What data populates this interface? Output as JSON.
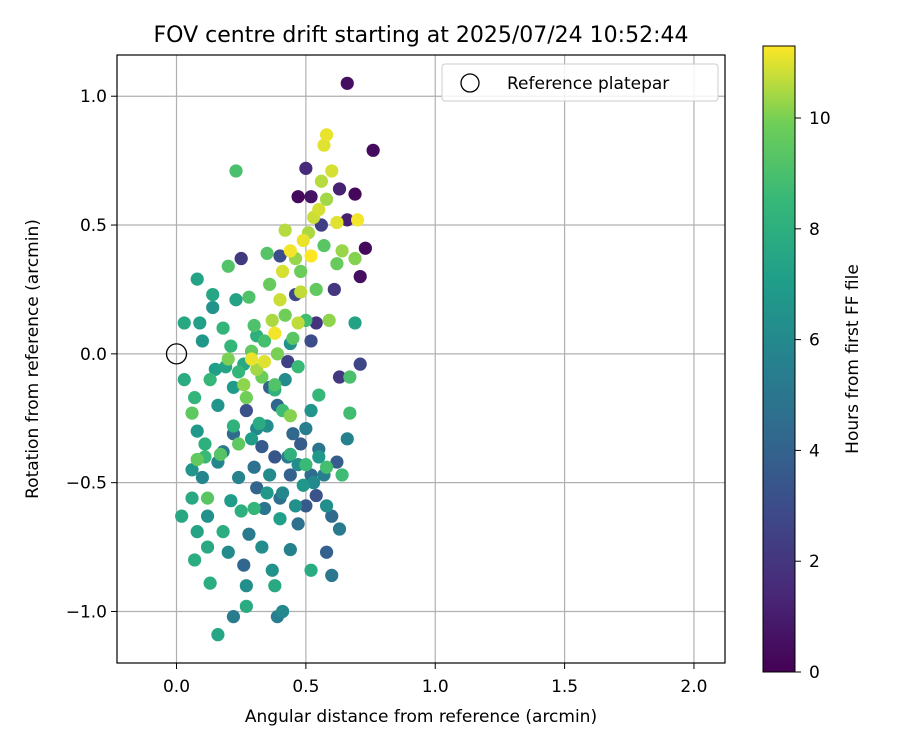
{
  "chart_data": {
    "type": "scatter",
    "title": "FOV centre drift starting at 2025/07/24 10:52:44",
    "xlabel": "Angular distance from reference (arcmin)",
    "ylabel": "Rotation from reference (arcmin)",
    "xlim": [
      -0.23,
      2.12
    ],
    "ylim": [
      -1.2,
      1.16
    ],
    "xticks": [
      0.0,
      0.5,
      1.0,
      1.5,
      2.0
    ],
    "xtick_labels": [
      "0.0",
      "0.5",
      "1.0",
      "1.5",
      "2.0"
    ],
    "yticks": [
      -1.0,
      -0.5,
      0.0,
      0.5,
      1.0
    ],
    "ytick_labels": [
      "−1.0",
      "−0.5",
      "0.0",
      "0.5",
      "1.0"
    ],
    "grid": true,
    "legend_placement": "top-right",
    "legend": [
      "Reference platepar"
    ],
    "reference_point": {
      "name": "Reference platepar",
      "x": 0.0,
      "y": 0.0
    },
    "colorbar": {
      "label": "Hours from first FF file",
      "colormap": "viridis",
      "min": 0,
      "max": 11.3,
      "ticks": [
        0,
        2,
        4,
        6,
        8,
        10
      ],
      "tick_labels": [
        "0",
        "2",
        "4",
        "6",
        "8",
        "10"
      ]
    },
    "points": [
      {
        "x": 0.66,
        "y": 1.05,
        "c": 0.5
      },
      {
        "x": 0.76,
        "y": 0.79,
        "c": 0.4
      },
      {
        "x": 0.5,
        "y": 0.72,
        "c": 1.5
      },
      {
        "x": 0.47,
        "y": 0.61,
        "c": 0.3
      },
      {
        "x": 0.52,
        "y": 0.61,
        "c": 0.6
      },
      {
        "x": 0.69,
        "y": 0.62,
        "c": 0.2
      },
      {
        "x": 0.63,
        "y": 0.64,
        "c": 1.2
      },
      {
        "x": 0.66,
        "y": 0.52,
        "c": 1.1
      },
      {
        "x": 0.73,
        "y": 0.41,
        "c": 0.3
      },
      {
        "x": 0.71,
        "y": 0.3,
        "c": 0.5
      },
      {
        "x": 0.25,
        "y": 0.37,
        "c": 2.2
      },
      {
        "x": 0.56,
        "y": 0.5,
        "c": 2.4
      },
      {
        "x": 0.61,
        "y": 0.25,
        "c": 2.0
      },
      {
        "x": 0.46,
        "y": 0.23,
        "c": 2.8
      },
      {
        "x": 0.54,
        "y": 0.12,
        "c": 1.9
      },
      {
        "x": 0.63,
        "y": -0.09,
        "c": 2.1
      },
      {
        "x": 0.71,
        "y": -0.04,
        "c": 2.7
      },
      {
        "x": 0.43,
        "y": -0.03,
        "c": 2.5
      },
      {
        "x": 0.52,
        "y": 0.05,
        "c": 3.0
      },
      {
        "x": 0.4,
        "y": 0.38,
        "c": 3.0
      },
      {
        "x": 0.33,
        "y": -0.36,
        "c": 3.6
      },
      {
        "x": 0.27,
        "y": -0.22,
        "c": 3.2
      },
      {
        "x": 0.38,
        "y": -0.4,
        "c": 3.4
      },
      {
        "x": 0.44,
        "y": -0.47,
        "c": 3.9
      },
      {
        "x": 0.54,
        "y": -0.55,
        "c": 3.3
      },
      {
        "x": 0.62,
        "y": -0.42,
        "c": 3.8
      },
      {
        "x": 0.26,
        "y": -0.82,
        "c": 4.2
      },
      {
        "x": 0.58,
        "y": -0.77,
        "c": 3.9
      },
      {
        "x": 0.5,
        "y": -0.59,
        "c": 3.6
      },
      {
        "x": 0.31,
        "y": -0.52,
        "c": 4.1
      },
      {
        "x": 0.22,
        "y": -0.31,
        "c": 4.4
      },
      {
        "x": 0.48,
        "y": -0.35,
        "c": 3.7
      },
      {
        "x": 0.36,
        "y": -0.13,
        "c": 4.0
      },
      {
        "x": 0.45,
        "y": -0.31,
        "c": 4.3
      },
      {
        "x": 0.52,
        "y": -0.47,
        "c": 4.5
      },
      {
        "x": 0.4,
        "y": -0.56,
        "c": 4.6
      },
      {
        "x": 0.3,
        "y": -0.44,
        "c": 4.8
      },
      {
        "x": 0.55,
        "y": -0.37,
        "c": 4.9
      },
      {
        "x": 0.6,
        "y": -0.63,
        "c": 4.4
      },
      {
        "x": 0.47,
        "y": -0.66,
        "c": 4.7
      },
      {
        "x": 0.39,
        "y": -0.2,
        "c": 4.2
      },
      {
        "x": 0.34,
        "y": -0.6,
        "c": 5.0
      },
      {
        "x": 0.28,
        "y": -0.7,
        "c": 5.2
      },
      {
        "x": 0.18,
        "y": -0.38,
        "c": 5.1
      },
      {
        "x": 0.43,
        "y": -0.4,
        "c": 5.3
      },
      {
        "x": 0.5,
        "y": -0.29,
        "c": 5.4
      },
      {
        "x": 0.57,
        "y": -0.47,
        "c": 5.5
      },
      {
        "x": 0.66,
        "y": -0.33,
        "c": 5.6
      },
      {
        "x": 0.6,
        "y": -0.86,
        "c": 5.1
      },
      {
        "x": 0.22,
        "y": -1.02,
        "c": 5.3
      },
      {
        "x": 0.39,
        "y": -1.02,
        "c": 5.4
      },
      {
        "x": 0.44,
        "y": -0.76,
        "c": 5.6
      },
      {
        "x": 0.63,
        "y": -0.68,
        "c": 5.2
      },
      {
        "x": 0.1,
        "y": -0.48,
        "c": 5.8
      },
      {
        "x": 0.16,
        "y": -0.42,
        "c": 5.9
      },
      {
        "x": 0.24,
        "y": -0.48,
        "c": 5.7
      },
      {
        "x": 0.31,
        "y": -0.29,
        "c": 6.0
      },
      {
        "x": 0.36,
        "y": -0.47,
        "c": 6.1
      },
      {
        "x": 0.41,
        "y": -0.54,
        "c": 5.9
      },
      {
        "x": 0.47,
        "y": -0.43,
        "c": 6.2
      },
      {
        "x": 0.53,
        "y": -0.5,
        "c": 6.0
      },
      {
        "x": 0.58,
        "y": -0.59,
        "c": 6.3
      },
      {
        "x": 0.2,
        "y": -0.77,
        "c": 6.1
      },
      {
        "x": 0.33,
        "y": -0.75,
        "c": 6.2
      },
      {
        "x": 0.12,
        "y": -0.63,
        "c": 6.4
      },
      {
        "x": 0.41,
        "y": -1.0,
        "c": 6.0
      },
      {
        "x": 0.27,
        "y": -0.9,
        "c": 6.3
      },
      {
        "x": 0.37,
        "y": -0.84,
        "c": 6.5
      },
      {
        "x": 0.46,
        "y": -0.59,
        "c": 6.4
      },
      {
        "x": 0.35,
        "y": -0.28,
        "c": 6.2
      },
      {
        "x": 0.42,
        "y": -0.1,
        "c": 6.1
      },
      {
        "x": 0.16,
        "y": -0.2,
        "c": 6.6
      },
      {
        "x": 0.1,
        "y": 0.05,
        "c": 6.7
      },
      {
        "x": 0.14,
        "y": 0.18,
        "c": 6.5
      },
      {
        "x": 0.08,
        "y": -0.3,
        "c": 6.8
      },
      {
        "x": 0.06,
        "y": -0.45,
        "c": 6.6
      },
      {
        "x": 0.22,
        "y": -0.13,
        "c": 6.9
      },
      {
        "x": 0.52,
        "y": -0.22,
        "c": 6.6
      },
      {
        "x": 0.49,
        "y": -0.51,
        "c": 6.7
      },
      {
        "x": 0.55,
        "y": -0.4,
        "c": 6.8
      },
      {
        "x": 0.44,
        "y": 0.04,
        "c": 6.5
      },
      {
        "x": 0.35,
        "y": -0.54,
        "c": 6.8
      },
      {
        "x": 0.21,
        "y": -0.57,
        "c": 7.0
      },
      {
        "x": 0.29,
        "y": -0.33,
        "c": 7.0
      },
      {
        "x": 0.15,
        "y": -0.06,
        "c": 7.1
      },
      {
        "x": 0.4,
        "y": -0.64,
        "c": 7.1
      },
      {
        "x": 0.69,
        "y": 0.12,
        "c": 7.3
      },
      {
        "x": 0.08,
        "y": 0.29,
        "c": 7.4
      },
      {
        "x": 0.09,
        "y": 0.12,
        "c": 7.2
      },
      {
        "x": 0.03,
        "y": 0.12,
        "c": 7.6
      },
      {
        "x": 0.14,
        "y": 0.23,
        "c": 7.5
      },
      {
        "x": 0.23,
        "y": 0.21,
        "c": 7.3
      },
      {
        "x": 0.19,
        "y": -0.05,
        "c": 7.4
      },
      {
        "x": 0.12,
        "y": -0.75,
        "c": 7.7
      },
      {
        "x": 0.03,
        "y": -0.1,
        "c": 7.8
      },
      {
        "x": 0.02,
        "y": -0.63,
        "c": 7.6
      },
      {
        "x": 0.08,
        "y": -0.69,
        "c": 7.4
      },
      {
        "x": 0.06,
        "y": -0.56,
        "c": 7.7
      },
      {
        "x": 0.13,
        "y": -0.89,
        "c": 7.9
      },
      {
        "x": 0.16,
        "y": -1.09,
        "c": 7.5
      },
      {
        "x": 0.27,
        "y": -0.98,
        "c": 7.8
      },
      {
        "x": 0.18,
        "y": -0.69,
        "c": 7.9
      },
      {
        "x": 0.25,
        "y": -0.61,
        "c": 8.0
      },
      {
        "x": 0.38,
        "y": -0.9,
        "c": 7.7
      },
      {
        "x": 0.32,
        "y": -0.27,
        "c": 7.8
      },
      {
        "x": 0.26,
        "y": -0.04,
        "c": 7.6
      },
      {
        "x": 0.11,
        "y": -0.35,
        "c": 8.0
      },
      {
        "x": 0.07,
        "y": -0.8,
        "c": 7.9
      },
      {
        "x": 0.52,
        "y": -0.84,
        "c": 7.8
      },
      {
        "x": 0.44,
        "y": -0.39,
        "c": 8.1
      },
      {
        "x": 0.38,
        "y": -0.14,
        "c": 8.2
      },
      {
        "x": 0.31,
        "y": 0.07,
        "c": 8.0
      },
      {
        "x": 0.18,
        "y": 0.1,
        "c": 8.3
      },
      {
        "x": 0.3,
        "y": -0.6,
        "c": 8.4
      },
      {
        "x": 0.22,
        "y": -0.28,
        "c": 8.2
      },
      {
        "x": 0.13,
        "y": -0.1,
        "c": 8.5
      },
      {
        "x": 0.07,
        "y": -0.17,
        "c": 8.3
      },
      {
        "x": 0.11,
        "y": -0.4,
        "c": 8.6
      },
      {
        "x": 0.24,
        "y": -0.07,
        "c": 8.4
      },
      {
        "x": 0.41,
        "y": -0.22,
        "c": 8.7
      },
      {
        "x": 0.55,
        "y": -0.16,
        "c": 8.5
      },
      {
        "x": 0.5,
        "y": -0.43,
        "c": 8.6
      },
      {
        "x": 0.67,
        "y": -0.23,
        "c": 8.8
      },
      {
        "x": 0.58,
        "y": -0.44,
        "c": 8.9
      },
      {
        "x": 0.64,
        "y": -0.47,
        "c": 8.7
      },
      {
        "x": 0.47,
        "y": -0.05,
        "c": 8.6
      },
      {
        "x": 0.5,
        "y": 0.13,
        "c": 8.8
      },
      {
        "x": 0.67,
        "y": -0.09,
        "c": 9.0
      },
      {
        "x": 0.34,
        "y": 0.05,
        "c": 8.9
      },
      {
        "x": 0.21,
        "y": 0.03,
        "c": 8.4
      },
      {
        "x": 0.28,
        "y": 0.22,
        "c": 9.1
      },
      {
        "x": 0.2,
        "y": 0.34,
        "c": 9.2
      },
      {
        "x": 0.23,
        "y": 0.71,
        "c": 9.0
      },
      {
        "x": 0.35,
        "y": 0.39,
        "c": 9.3
      },
      {
        "x": 0.3,
        "y": 0.11,
        "c": 9.1
      },
      {
        "x": 0.45,
        "y": 0.06,
        "c": 9.4
      },
      {
        "x": 0.38,
        "y": -0.12,
        "c": 9.2
      },
      {
        "x": 0.24,
        "y": -0.35,
        "c": 9.5
      },
      {
        "x": 0.17,
        "y": -0.39,
        "c": 9.3
      },
      {
        "x": 0.08,
        "y": -0.41,
        "c": 9.6
      },
      {
        "x": 0.12,
        "y": -0.56,
        "c": 9.4
      },
      {
        "x": 0.06,
        "y": -0.23,
        "c": 9.5
      },
      {
        "x": 0.54,
        "y": 0.25,
        "c": 9.6
      },
      {
        "x": 0.62,
        "y": 0.35,
        "c": 9.7
      },
      {
        "x": 0.57,
        "y": 0.42,
        "c": 9.4
      },
      {
        "x": 0.48,
        "y": 0.32,
        "c": 9.8
      },
      {
        "x": 0.42,
        "y": 0.15,
        "c": 9.9
      },
      {
        "x": 0.36,
        "y": 0.27,
        "c": 9.7
      },
      {
        "x": 0.29,
        "y": 0.01,
        "c": 9.6
      },
      {
        "x": 0.39,
        "y": 0.0,
        "c": 10.0
      },
      {
        "x": 0.33,
        "y": -0.09,
        "c": 9.8
      },
      {
        "x": 0.27,
        "y": -0.17,
        "c": 9.9
      },
      {
        "x": 0.44,
        "y": -0.24,
        "c": 10.1
      },
      {
        "x": 0.2,
        "y": -0.02,
        "c": 10.0
      },
      {
        "x": 0.59,
        "y": 0.13,
        "c": 10.2
      },
      {
        "x": 0.64,
        "y": 0.4,
        "c": 10.3
      },
      {
        "x": 0.69,
        "y": 0.37,
        "c": 10.1
      },
      {
        "x": 0.58,
        "y": 0.6,
        "c": 10.4
      },
      {
        "x": 0.51,
        "y": 0.47,
        "c": 10.5
      },
      {
        "x": 0.46,
        "y": 0.37,
        "c": 10.3
      },
      {
        "x": 0.42,
        "y": 0.48,
        "c": 10.6
      },
      {
        "x": 0.37,
        "y": 0.13,
        "c": 10.5
      },
      {
        "x": 0.31,
        "y": -0.06,
        "c": 10.4
      },
      {
        "x": 0.26,
        "y": -0.12,
        "c": 10.2
      },
      {
        "x": 0.48,
        "y": 0.24,
        "c": 10.7
      },
      {
        "x": 0.53,
        "y": 0.53,
        "c": 10.8
      },
      {
        "x": 0.56,
        "y": 0.67,
        "c": 10.6
      },
      {
        "x": 0.6,
        "y": 0.71,
        "c": 10.9
      },
      {
        "x": 0.57,
        "y": 0.81,
        "c": 11.0
      },
      {
        "x": 0.58,
        "y": 0.85,
        "c": 11.1
      },
      {
        "x": 0.55,
        "y": 0.56,
        "c": 10.9
      },
      {
        "x": 0.62,
        "y": 0.51,
        "c": 11.0
      },
      {
        "x": 0.7,
        "y": 0.52,
        "c": 11.2
      },
      {
        "x": 0.49,
        "y": 0.44,
        "c": 11.1
      },
      {
        "x": 0.44,
        "y": 0.4,
        "c": 11.2
      },
      {
        "x": 0.4,
        "y": 0.21,
        "c": 10.8
      },
      {
        "x": 0.34,
        "y": -0.03,
        "c": 11.0
      },
      {
        "x": 0.41,
        "y": 0.32,
        "c": 10.9
      },
      {
        "x": 0.52,
        "y": 0.38,
        "c": 11.3
      },
      {
        "x": 0.47,
        "y": 0.12,
        "c": 10.7
      },
      {
        "x": 0.38,
        "y": 0.08,
        "c": 11.2
      },
      {
        "x": 0.29,
        "y": -0.02,
        "c": 11.1
      }
    ]
  }
}
